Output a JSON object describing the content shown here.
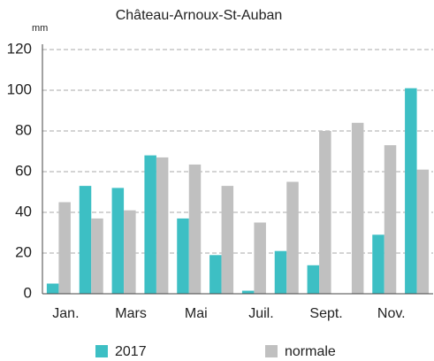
{
  "chart_data": {
    "type": "bar",
    "title": "Château-Arnoux-St-Auban",
    "y_label": "mm",
    "categories": [
      "Jan.",
      null,
      "Mars",
      null,
      "Mai",
      null,
      "Juil.",
      null,
      "Sept.",
      null,
      "Nov.",
      null
    ],
    "series": [
      {
        "name": "2017",
        "color": "#3dbfc4",
        "values": [
          5,
          53,
          52,
          68,
          37,
          19,
          1.5,
          21,
          14,
          0,
          29,
          101
        ]
      },
      {
        "name": "normale",
        "color": "#c0c0c0",
        "values": [
          45,
          37,
          41,
          67,
          63.5,
          53,
          35,
          55,
          80,
          84,
          73,
          61
        ]
      }
    ],
    "ylim": [
      0,
      120
    ],
    "yticks": [
      0,
      20,
      40,
      60,
      80,
      100,
      120
    ],
    "grid": true
  }
}
